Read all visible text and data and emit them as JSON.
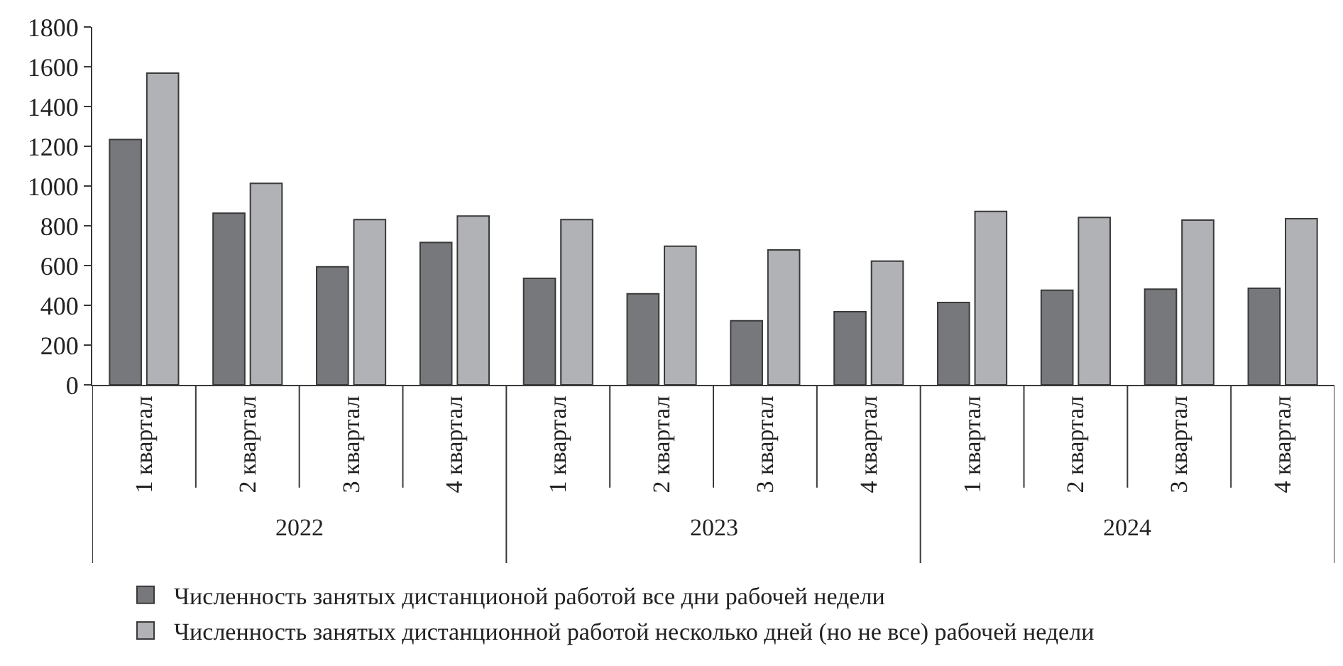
{
  "chart_data": {
    "type": "bar",
    "categories": [
      "1 квартал",
      "2 квартал",
      "3 квартал",
      "4 квартал",
      "1 квартал",
      "2 квартал",
      "3 квартал",
      "4 квартал",
      "1 квартал",
      "2 квартал",
      "3 квартал",
      "4 квартал"
    ],
    "series": [
      {
        "name": "Численность занятых дистанционой работой все дни рабочей недели",
        "color": "#77787b",
        "values": [
          1234,
          863,
          594,
          716,
          536,
          458,
          322,
          368,
          414,
          476,
          481,
          486
        ]
      },
      {
        "name": "Численность занятых дистанционной работой несколько дней (но не все) рабочей недели",
        "color": "#b1b2b5",
        "values": [
          1568,
          1013,
          831,
          849,
          831,
          697,
          679,
          622,
          872,
          842,
          829,
          836
        ]
      }
    ],
    "annotations": [
      "2022",
      "2023",
      "2024"
    ],
    "ylim": [
      0,
      1800
    ],
    "yticks": [
      0,
      200,
      400,
      600,
      800,
      1000,
      1200,
      1400,
      1600,
      1800
    ],
    "legend": "bottom"
  }
}
